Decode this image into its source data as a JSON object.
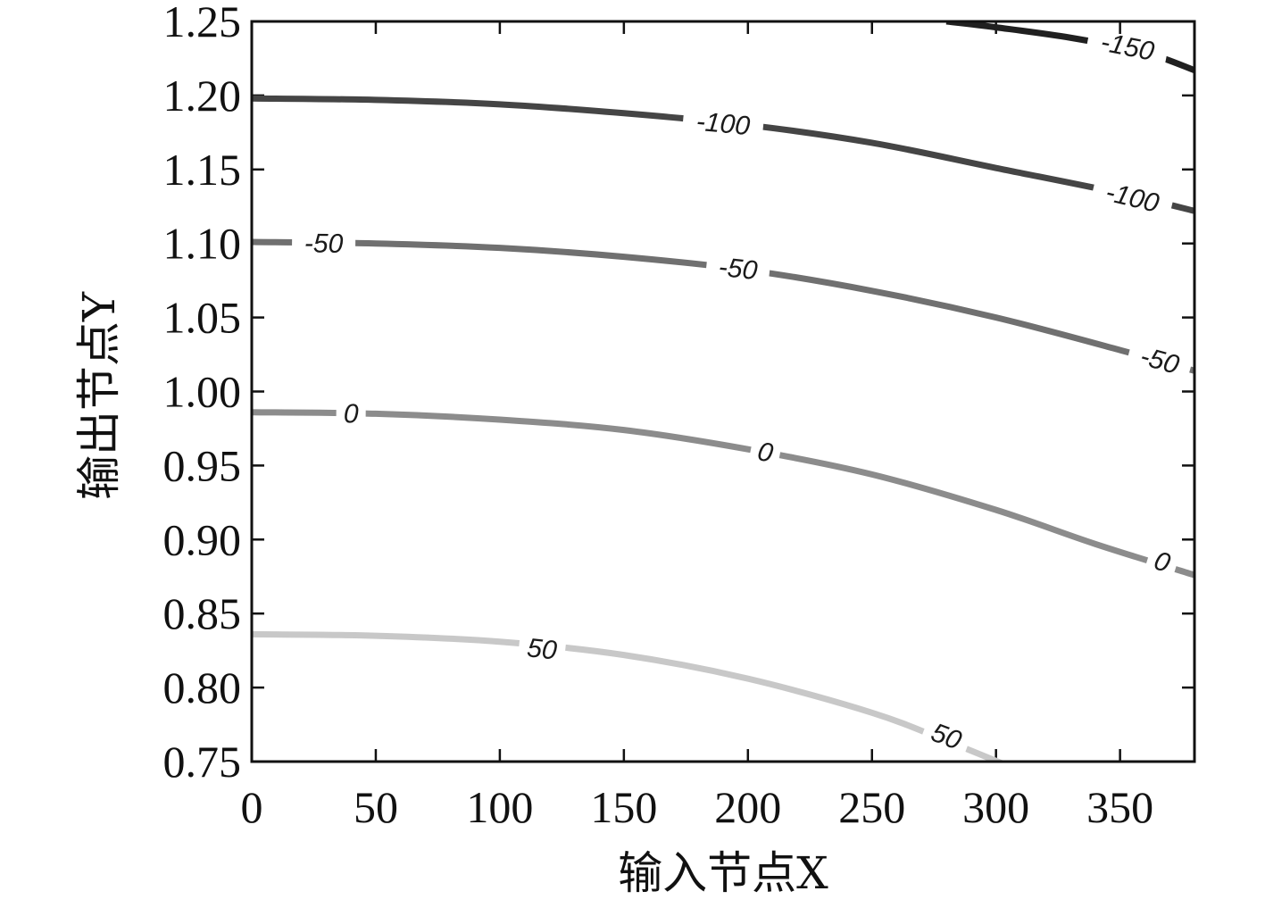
{
  "chart_data": {
    "type": "contour",
    "xlabel": "输入节点X",
    "ylabel": "输出节点Y",
    "xlim": [
      0,
      380
    ],
    "ylim": [
      0.75,
      1.25
    ],
    "xticks": [
      0,
      50,
      100,
      150,
      200,
      250,
      300,
      350
    ],
    "xtick_labels": [
      "0",
      "50",
      "100",
      "150",
      "200",
      "250",
      "300",
      "350"
    ],
    "yticks": [
      0.75,
      0.8,
      0.85,
      0.9,
      0.95,
      1.0,
      1.05,
      1.1,
      1.15,
      1.2,
      1.25
    ],
    "ytick_labels": [
      "0.75",
      "0.80",
      "0.85",
      "0.90",
      "0.95",
      "1.00",
      "1.05",
      "1.10",
      "1.15",
      "1.20",
      "1.25"
    ],
    "grid": false,
    "contours": [
      {
        "level": 50,
        "label": "50",
        "color": "#c8c8c8",
        "points": [
          [
            0,
            0.836
          ],
          [
            50,
            0.835
          ],
          [
            100,
            0.831
          ],
          [
            150,
            0.822
          ],
          [
            200,
            0.806
          ],
          [
            250,
            0.783
          ],
          [
            280,
            0.764
          ],
          [
            305,
            0.747
          ]
        ],
        "label_positions": [
          [
            117,
            0.826
          ],
          [
            280,
            0.767
          ]
        ]
      },
      {
        "level": 0,
        "label": "0",
        "color": "#8c8c8c",
        "points": [
          [
            0,
            0.986
          ],
          [
            50,
            0.985
          ],
          [
            100,
            0.981
          ],
          [
            150,
            0.974
          ],
          [
            200,
            0.961
          ],
          [
            250,
            0.944
          ],
          [
            300,
            0.92
          ],
          [
            340,
            0.897
          ],
          [
            380,
            0.876
          ]
        ],
        "label_positions": [
          [
            40,
            0.985
          ],
          [
            207,
            0.959
          ],
          [
            367,
            0.885
          ]
        ]
      },
      {
        "level": -50,
        "label": "-50",
        "color": "#707070",
        "points": [
          [
            0,
            1.101
          ],
          [
            50,
            1.1
          ],
          [
            100,
            1.097
          ],
          [
            150,
            1.091
          ],
          [
            200,
            1.082
          ],
          [
            250,
            1.068
          ],
          [
            300,
            1.05
          ],
          [
            350,
            1.028
          ],
          [
            380,
            1.014
          ]
        ],
        "label_positions": [
          [
            29,
            1.1
          ],
          [
            196,
            1.083
          ],
          [
            366,
            1.021
          ]
        ]
      },
      {
        "level": -100,
        "label": "-100",
        "color": "#454545",
        "points": [
          [
            0,
            1.198
          ],
          [
            50,
            1.197
          ],
          [
            100,
            1.194
          ],
          [
            150,
            1.188
          ],
          [
            200,
            1.18
          ],
          [
            250,
            1.168
          ],
          [
            300,
            1.151
          ],
          [
            350,
            1.134
          ],
          [
            380,
            1.122
          ]
        ],
        "label_positions": [
          [
            190,
            1.181
          ],
          [
            355,
            1.131
          ]
        ]
      },
      {
        "level": -150,
        "label": "-150",
        "color": "#202020",
        "points": [
          [
            280,
            1.25
          ],
          [
            300,
            1.246
          ],
          [
            330,
            1.239
          ],
          [
            360,
            1.229
          ],
          [
            380,
            1.217
          ]
        ],
        "label_positions": [
          [
            353,
            1.233
          ]
        ]
      }
    ]
  }
}
